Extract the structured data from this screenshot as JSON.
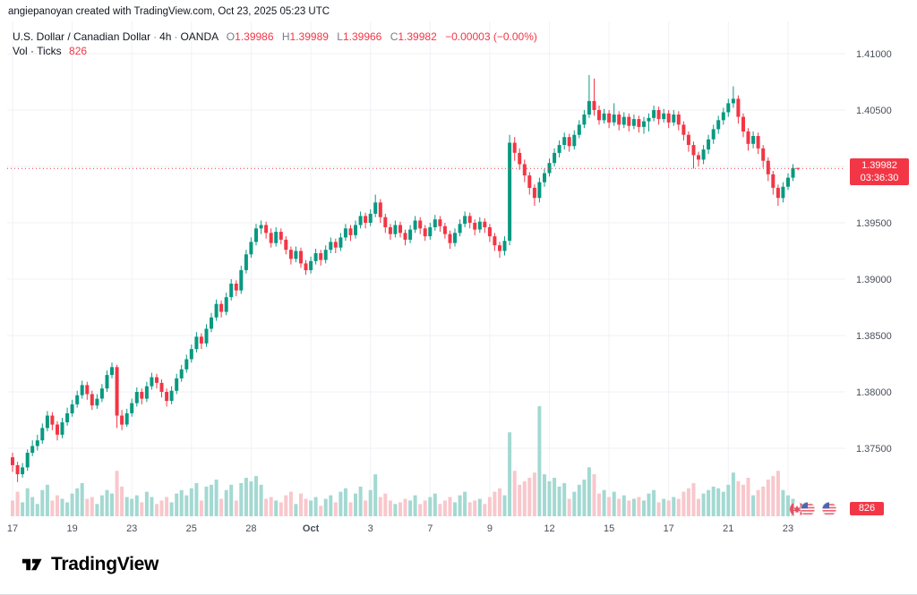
{
  "attribution": "angiepanoyan created with TradingView.com, Oct 23, 2025 05:23 UTC",
  "legend": {
    "title": "U.S. Dollar / Canadian Dollar",
    "separator": "·",
    "interval": "4h",
    "exchange": "OANDA",
    "o_label": "O",
    "o": "1.39986",
    "h_label": "H",
    "h": "1.39989",
    "l_label": "L",
    "l": "1.39966",
    "c_label": "C",
    "c": "1.39982",
    "change": "−0.00003 (−0.00%)",
    "vol_title": "Vol · Ticks",
    "vol_value": "826"
  },
  "price_badge": {
    "price": "1.39982",
    "countdown": "03:36:30"
  },
  "vol_badge": "826",
  "logo_text": "TradingView",
  "colors": {
    "up": "#089981",
    "down": "#f23645",
    "vol_up": "#a3d9d2",
    "vol_down": "#f8c7cc",
    "grid": "#f0f2f6",
    "axis_text": "#4a4e59",
    "badge": "#f23645"
  },
  "chart_data": {
    "type": "candlestick",
    "title": "U.S. Dollar / Canadian Dollar · 4h · OANDA",
    "volume_label": "Vol · Ticks",
    "current_price": 1.39982,
    "current_volume": 826,
    "countdown": "03:36:30",
    "y_axis": [
      {
        "label": "1.41000",
        "value": 1.41
      },
      {
        "label": "1.40500",
        "value": 1.405
      },
      {
        "label": "1.40000",
        "value": 1.4
      },
      {
        "label": "1.39500",
        "value": 1.395
      },
      {
        "label": "1.39000",
        "value": 1.39
      },
      {
        "label": "1.38500",
        "value": 1.385
      },
      {
        "label": "1.38000",
        "value": 1.38
      },
      {
        "label": "1.37500",
        "value": 1.375
      }
    ],
    "x_ticks": [
      {
        "label": "17",
        "index": 0
      },
      {
        "label": "19",
        "index": 12
      },
      {
        "label": "23",
        "index": 24
      },
      {
        "label": "25",
        "index": 36
      },
      {
        "label": "28",
        "index": 48
      },
      {
        "label": "Oct",
        "index": 60,
        "bold": true
      },
      {
        "label": "3",
        "index": 72
      },
      {
        "label": "7",
        "index": 84
      },
      {
        "label": "9",
        "index": 96
      },
      {
        "label": "12",
        "index": 108
      },
      {
        "label": "15",
        "index": 120
      },
      {
        "label": "17",
        "index": 132
      },
      {
        "label": "21",
        "index": 144
      },
      {
        "label": "23",
        "index": 156
      }
    ],
    "candles": [
      [
        1.3742,
        1.3746,
        1.3729,
        1.3735,
        900
      ],
      [
        1.3735,
        1.3738,
        1.372,
        1.3727,
        1400
      ],
      [
        1.3727,
        1.3737,
        1.3724,
        1.3733,
        800
      ],
      [
        1.3733,
        1.3749,
        1.373,
        1.3746,
        1600
      ],
      [
        1.3746,
        1.3757,
        1.3743,
        1.3752,
        1100
      ],
      [
        1.3752,
        1.3762,
        1.3748,
        1.3757,
        700
      ],
      [
        1.3757,
        1.3772,
        1.3754,
        1.3768,
        1500
      ],
      [
        1.3768,
        1.3783,
        1.3765,
        1.3779,
        1800
      ],
      [
        1.3779,
        1.3782,
        1.3766,
        1.3771,
        900
      ],
      [
        1.3771,
        1.3774,
        1.3757,
        1.3762,
        1200
      ],
      [
        1.3762,
        1.3777,
        1.3759,
        1.3773,
        1000
      ],
      [
        1.3773,
        1.3786,
        1.377,
        1.3781,
        800
      ],
      [
        1.3781,
        1.3793,
        1.3778,
        1.3789,
        1300
      ],
      [
        1.3789,
        1.3801,
        1.3786,
        1.3797,
        1600
      ],
      [
        1.3797,
        1.381,
        1.3794,
        1.3806,
        1900
      ],
      [
        1.3806,
        1.3809,
        1.3793,
        1.3798,
        1000
      ],
      [
        1.3798,
        1.3801,
        1.3784,
        1.3788,
        1100
      ],
      [
        1.3788,
        1.3798,
        1.3785,
        1.3794,
        700
      ],
      [
        1.3794,
        1.3807,
        1.3791,
        1.3803,
        1200
      ],
      [
        1.3803,
        1.3819,
        1.38,
        1.3815,
        1500
      ],
      [
        1.3815,
        1.3826,
        1.3812,
        1.3822,
        1300
      ],
      [
        1.3822,
        1.3824,
        1.3768,
        1.3779,
        2600
      ],
      [
        1.3779,
        1.3784,
        1.3766,
        1.3771,
        1700
      ],
      [
        1.3771,
        1.3785,
        1.3769,
        1.3781,
        1100
      ],
      [
        1.3781,
        1.3794,
        1.3778,
        1.379,
        1000
      ],
      [
        1.379,
        1.3804,
        1.3787,
        1.38,
        1200
      ],
      [
        1.38,
        1.3803,
        1.3789,
        1.3794,
        800
      ],
      [
        1.3794,
        1.3809,
        1.3791,
        1.3805,
        1400
      ],
      [
        1.3805,
        1.3817,
        1.3802,
        1.3813,
        1100
      ],
      [
        1.3813,
        1.3816,
        1.3803,
        1.3808,
        700
      ],
      [
        1.3808,
        1.3811,
        1.3795,
        1.38,
        900
      ],
      [
        1.38,
        1.3803,
        1.3787,
        1.3792,
        1100
      ],
      [
        1.3792,
        1.3805,
        1.3789,
        1.3801,
        800
      ],
      [
        1.3801,
        1.3816,
        1.3798,
        1.3812,
        1300
      ],
      [
        1.3812,
        1.3824,
        1.3809,
        1.382,
        1500
      ],
      [
        1.382,
        1.3833,
        1.3817,
        1.3829,
        1200
      ],
      [
        1.3829,
        1.3842,
        1.3826,
        1.3838,
        1600
      ],
      [
        1.3838,
        1.3853,
        1.3835,
        1.3849,
        1900
      ],
      [
        1.3849,
        1.3852,
        1.3838,
        1.3843,
        900
      ],
      [
        1.3843,
        1.386,
        1.384,
        1.3856,
        1700
      ],
      [
        1.3856,
        1.387,
        1.3853,
        1.3866,
        1800
      ],
      [
        1.3866,
        1.3882,
        1.3863,
        1.3878,
        2100
      ],
      [
        1.3878,
        1.3881,
        1.3866,
        1.3871,
        1000
      ],
      [
        1.3871,
        1.3888,
        1.3868,
        1.3884,
        1500
      ],
      [
        1.3884,
        1.39,
        1.3881,
        1.3896,
        1800
      ],
      [
        1.3896,
        1.3899,
        1.3885,
        1.389,
        900
      ],
      [
        1.389,
        1.3912,
        1.3887,
        1.3908,
        1900
      ],
      [
        1.3908,
        1.3926,
        1.3905,
        1.3922,
        2200
      ],
      [
        1.3922,
        1.3937,
        1.3919,
        1.3933,
        2000
      ],
      [
        1.3933,
        1.3949,
        1.393,
        1.3945,
        2300
      ],
      [
        1.3945,
        1.3952,
        1.394,
        1.3948,
        1800
      ],
      [
        1.3948,
        1.3951,
        1.3936,
        1.3941,
        1000
      ],
      [
        1.3941,
        1.3945,
        1.3928,
        1.3932,
        1100
      ],
      [
        1.3932,
        1.3946,
        1.3929,
        1.3942,
        900
      ],
      [
        1.3942,
        1.3945,
        1.3931,
        1.3935,
        800
      ],
      [
        1.3935,
        1.3938,
        1.3922,
        1.3926,
        1200
      ],
      [
        1.3926,
        1.3929,
        1.3913,
        1.3918,
        1400
      ],
      [
        1.3918,
        1.3929,
        1.3915,
        1.3925,
        700
      ],
      [
        1.3925,
        1.3928,
        1.391,
        1.3914,
        1300
      ],
      [
        1.3914,
        1.3917,
        1.3904,
        1.3908,
        1000
      ],
      [
        1.3908,
        1.392,
        1.3905,
        1.3916,
        900
      ],
      [
        1.3916,
        1.3927,
        1.3913,
        1.3923,
        1100
      ],
      [
        1.3923,
        1.3926,
        1.3912,
        1.3917,
        600
      ],
      [
        1.3917,
        1.393,
        1.3914,
        1.3926,
        1000
      ],
      [
        1.3926,
        1.3937,
        1.3923,
        1.3933,
        1200
      ],
      [
        1.3933,
        1.3936,
        1.3923,
        1.3928,
        800
      ],
      [
        1.3928,
        1.3941,
        1.3925,
        1.3937,
        1400
      ],
      [
        1.3937,
        1.3949,
        1.3934,
        1.3945,
        1600
      ],
      [
        1.3945,
        1.3948,
        1.3934,
        1.3939,
        800
      ],
      [
        1.3939,
        1.3952,
        1.3936,
        1.3948,
        1300
      ],
      [
        1.3948,
        1.396,
        1.3945,
        1.3956,
        1700
      ],
      [
        1.3956,
        1.3959,
        1.3945,
        1.395,
        900
      ],
      [
        1.395,
        1.3962,
        1.3947,
        1.3958,
        1500
      ],
      [
        1.3958,
        1.3975,
        1.3955,
        1.3968,
        2400
      ],
      [
        1.3968,
        1.3971,
        1.395,
        1.3955,
        1100
      ],
      [
        1.3955,
        1.3958,
        1.3941,
        1.3946,
        1300
      ],
      [
        1.3946,
        1.3949,
        1.3935,
        1.394,
        900
      ],
      [
        1.394,
        1.3952,
        1.3937,
        1.3948,
        700
      ],
      [
        1.3948,
        1.3951,
        1.3937,
        1.3941,
        800
      ],
      [
        1.3941,
        1.3944,
        1.393,
        1.3935,
        1000
      ],
      [
        1.3935,
        1.3948,
        1.3932,
        1.3944,
        900
      ],
      [
        1.3944,
        1.3956,
        1.3941,
        1.3952,
        1200
      ],
      [
        1.3952,
        1.3955,
        1.394,
        1.3945,
        700
      ],
      [
        1.3945,
        1.3948,
        1.3934,
        1.3938,
        900
      ],
      [
        1.3938,
        1.395,
        1.3935,
        1.3946,
        1100
      ],
      [
        1.3946,
        1.3957,
        1.3943,
        1.3953,
        1300
      ],
      [
        1.3953,
        1.3956,
        1.3942,
        1.3947,
        700
      ],
      [
        1.3947,
        1.395,
        1.3936,
        1.394,
        900
      ],
      [
        1.394,
        1.3943,
        1.3927,
        1.3932,
        1100
      ],
      [
        1.3932,
        1.3945,
        1.3929,
        1.3941,
        800
      ],
      [
        1.3941,
        1.3953,
        1.3938,
        1.3949,
        1200
      ],
      [
        1.3949,
        1.396,
        1.3946,
        1.3956,
        1400
      ],
      [
        1.3956,
        1.3959,
        1.3945,
        1.395,
        800
      ],
      [
        1.395,
        1.3953,
        1.3939,
        1.3944,
        900
      ],
      [
        1.3944,
        1.3955,
        1.3941,
        1.3951,
        1000
      ],
      [
        1.3951,
        1.3954,
        1.3941,
        1.3946,
        700
      ],
      [
        1.3946,
        1.3949,
        1.3933,
        1.3938,
        1100
      ],
      [
        1.3938,
        1.3941,
        1.3925,
        1.393,
        1400
      ],
      [
        1.393,
        1.3933,
        1.3919,
        1.3925,
        1600
      ],
      [
        1.3925,
        1.3938,
        1.3921,
        1.3934,
        1200
      ],
      [
        1.3934,
        1.4028,
        1.393,
        1.4021,
        4800
      ],
      [
        1.4021,
        1.4026,
        1.4005,
        1.4012,
        2600
      ],
      [
        1.4012,
        1.4016,
        1.3997,
        1.4002,
        1800
      ],
      [
        1.4002,
        1.4006,
        1.3986,
        1.3992,
        2000
      ],
      [
        1.3992,
        1.3995,
        1.3975,
        1.3981,
        2200
      ],
      [
        1.3981,
        1.3984,
        1.3965,
        1.3972,
        2500
      ],
      [
        1.3972,
        1.399,
        1.3968,
        1.3986,
        6300
      ],
      [
        1.3986,
        1.3998,
        1.3982,
        1.3994,
        2400
      ],
      [
        1.3994,
        1.4007,
        1.3991,
        1.4003,
        2000
      ],
      [
        1.4003,
        1.4016,
        1.4,
        1.4012,
        2200
      ],
      [
        1.4012,
        1.4023,
        1.4008,
        1.4019,
        1700
      ],
      [
        1.4019,
        1.403,
        1.4015,
        1.4026,
        1900
      ],
      [
        1.4026,
        1.4029,
        1.4013,
        1.4018,
        1000
      ],
      [
        1.4018,
        1.4032,
        1.4015,
        1.4028,
        1400
      ],
      [
        1.4028,
        1.4041,
        1.4025,
        1.4037,
        1800
      ],
      [
        1.4037,
        1.405,
        1.4034,
        1.4046,
        2100
      ],
      [
        1.4046,
        1.4081,
        1.4043,
        1.4058,
        2800
      ],
      [
        1.4058,
        1.4078,
        1.4045,
        1.405,
        2400
      ],
      [
        1.405,
        1.4054,
        1.4037,
        1.4041,
        1300
      ],
      [
        1.4041,
        1.4051,
        1.4038,
        1.4047,
        1500
      ],
      [
        1.4047,
        1.405,
        1.4034,
        1.4039,
        1100
      ],
      [
        1.4039,
        1.4056,
        1.4036,
        1.4046,
        1400
      ],
      [
        1.4046,
        1.4049,
        1.4032,
        1.4037,
        1000
      ],
      [
        1.4037,
        1.4048,
        1.4034,
        1.4044,
        1200
      ],
      [
        1.4044,
        1.4047,
        1.4031,
        1.4036,
        900
      ],
      [
        1.4036,
        1.4046,
        1.4033,
        1.4042,
        1000
      ],
      [
        1.4042,
        1.4045,
        1.403,
        1.4035,
        1100
      ],
      [
        1.4035,
        1.4044,
        1.4029,
        1.404,
        900
      ],
      [
        1.404,
        1.4047,
        1.4031,
        1.4043,
        1300
      ],
      [
        1.4043,
        1.4054,
        1.404,
        1.405,
        1500
      ],
      [
        1.405,
        1.4053,
        1.4037,
        1.4042,
        800
      ],
      [
        1.4042,
        1.4051,
        1.4039,
        1.4047,
        1000
      ],
      [
        1.4047,
        1.405,
        1.4034,
        1.4039,
        900
      ],
      [
        1.4039,
        1.405,
        1.4036,
        1.4046,
        1100
      ],
      [
        1.4046,
        1.4049,
        1.4032,
        1.4037,
        1000
      ],
      [
        1.4037,
        1.404,
        1.4023,
        1.4028,
        1400
      ],
      [
        1.4028,
        1.4031,
        1.4013,
        1.4019,
        1600
      ],
      [
        1.4019,
        1.4022,
        1.3998,
        1.401,
        1900
      ],
      [
        1.401,
        1.4013,
        1.4,
        1.4006,
        1000
      ],
      [
        1.4006,
        1.4019,
        1.4002,
        1.4015,
        1300
      ],
      [
        1.4015,
        1.4028,
        1.4011,
        1.4024,
        1500
      ],
      [
        1.4024,
        1.4037,
        1.402,
        1.4033,
        1700
      ],
      [
        1.4033,
        1.4045,
        1.4029,
        1.4041,
        1600
      ],
      [
        1.4041,
        1.4052,
        1.4037,
        1.4048,
        1400
      ],
      [
        1.4048,
        1.406,
        1.4044,
        1.4056,
        1800
      ],
      [
        1.4056,
        1.4071,
        1.4052,
        1.406,
        2500
      ],
      [
        1.406,
        1.4063,
        1.4038,
        1.4044,
        2000
      ],
      [
        1.4044,
        1.4047,
        1.4026,
        1.4031,
        1800
      ],
      [
        1.4031,
        1.4034,
        1.4014,
        1.402,
        2200
      ],
      [
        1.402,
        1.4031,
        1.4016,
        1.4027,
        1200
      ],
      [
        1.4027,
        1.403,
        1.4011,
        1.4016,
        1500
      ],
      [
        1.4016,
        1.4019,
        1.3999,
        1.4005,
        1700
      ],
      [
        1.4005,
        1.4008,
        1.3987,
        1.3993,
        2100
      ],
      [
        1.3993,
        1.3996,
        1.3975,
        1.3981,
        2300
      ],
      [
        1.3981,
        1.3984,
        1.3965,
        1.3972,
        2600
      ],
      [
        1.3972,
        1.3986,
        1.3968,
        1.3982,
        1500
      ],
      [
        1.3982,
        1.3994,
        1.3979,
        1.399,
        1200
      ],
      [
        1.399,
        1.4002,
        1.3987,
        1.39986,
        1000
      ],
      [
        1.39986,
        1.39989,
        1.39966,
        1.39982,
        826
      ]
    ]
  }
}
